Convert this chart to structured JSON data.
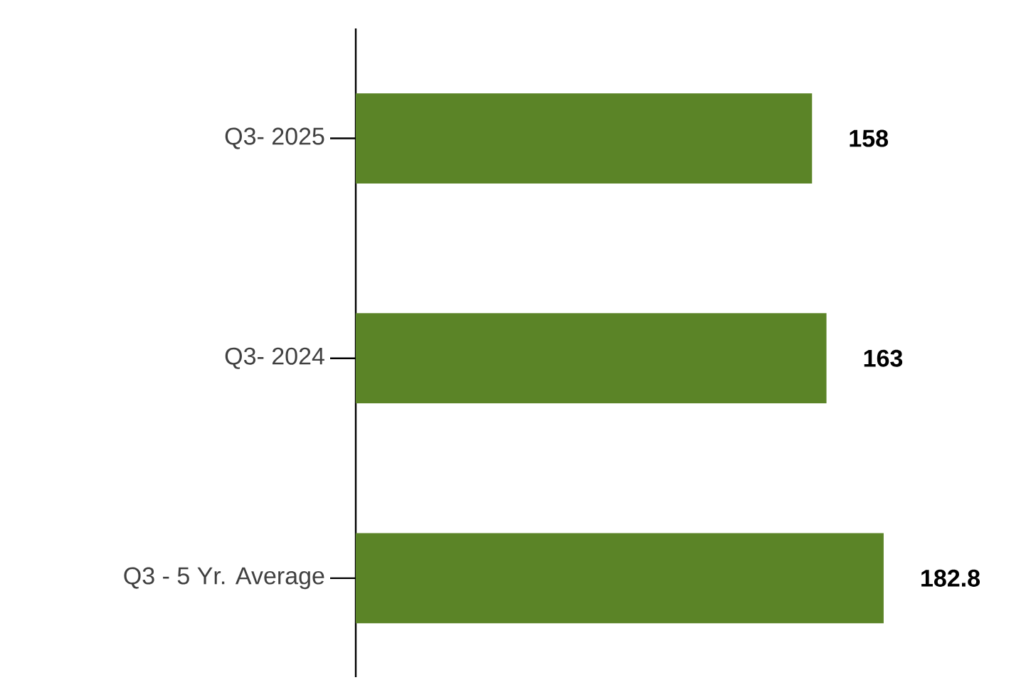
{
  "chart_data": {
    "type": "bar",
    "orientation": "horizontal",
    "categories": [
      "Q3- 2025",
      "Q3- 2024",
      "Q3 - 5 Yr. Average"
    ],
    "values": [
      158,
      163,
      182.8
    ],
    "color": "#5b8427",
    "data_labels": true
  }
}
